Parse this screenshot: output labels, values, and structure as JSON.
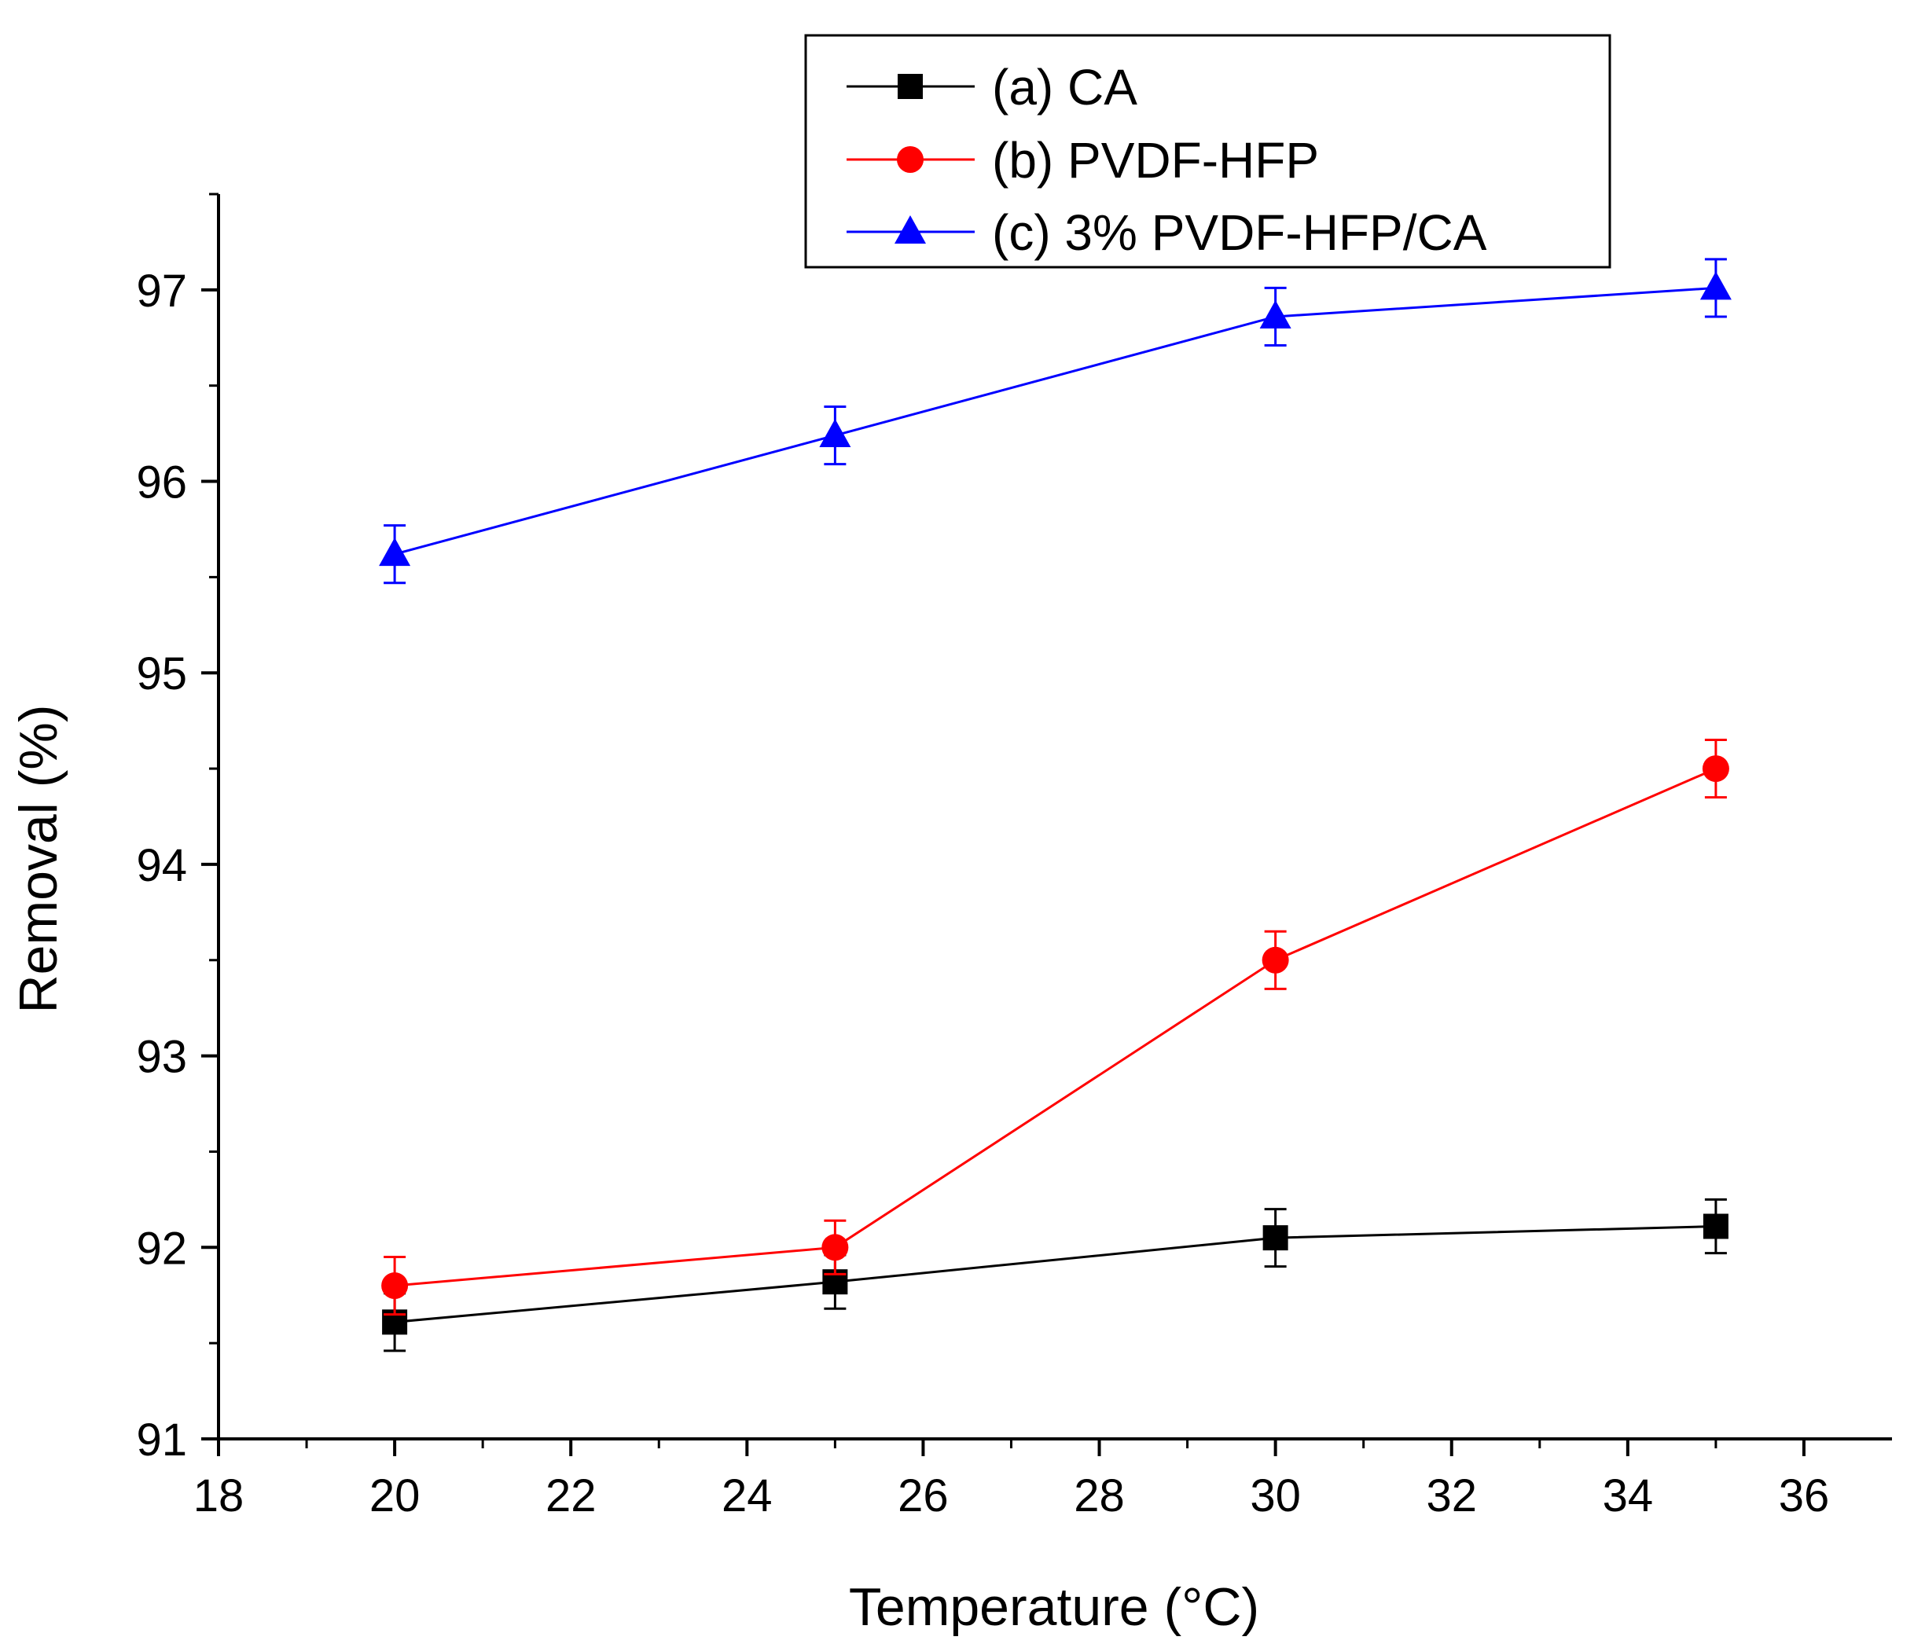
{
  "chart_data": {
    "type": "line",
    "title": "",
    "xlabel": "Temperature (°C)",
    "ylabel": "Removal (%)",
    "xlim": [
      18,
      37
    ],
    "ylim": [
      91,
      97.5
    ],
    "x_ticks": [
      18,
      20,
      22,
      24,
      26,
      28,
      30,
      32,
      34,
      36
    ],
    "y_ticks": [
      91,
      92,
      93,
      94,
      95,
      96,
      97
    ],
    "x_tick_labels": [
      "18",
      "20",
      "22",
      "24",
      "26",
      "28",
      "30",
      "32",
      "34",
      "36"
    ],
    "y_tick_labels": [
      "91",
      "92",
      "93",
      "94",
      "95",
      "96",
      "97"
    ],
    "legend_position": "top-center",
    "grid": false,
    "series": [
      {
        "name": "(a) CA",
        "color": "#000000",
        "marker": "square",
        "x": [
          20,
          25,
          30,
          35
        ],
        "y": [
          91.61,
          91.82,
          92.05,
          92.11
        ],
        "error": [
          0.15,
          0.14,
          0.15,
          0.14
        ]
      },
      {
        "name": "(b) PVDF-HFP",
        "color": "#ff0000",
        "marker": "circle",
        "x": [
          20,
          25,
          30,
          35
        ],
        "y": [
          91.8,
          92.0,
          93.5,
          94.5
        ],
        "error": [
          0.15,
          0.14,
          0.15,
          0.15
        ]
      },
      {
        "name": "(c) 3% PVDF-HFP/CA",
        "color": "#0000ff",
        "marker": "triangle",
        "x": [
          20,
          25,
          30,
          35
        ],
        "y": [
          95.62,
          96.24,
          96.86,
          97.01
        ],
        "error": [
          0.15,
          0.15,
          0.15,
          0.15
        ]
      }
    ]
  }
}
